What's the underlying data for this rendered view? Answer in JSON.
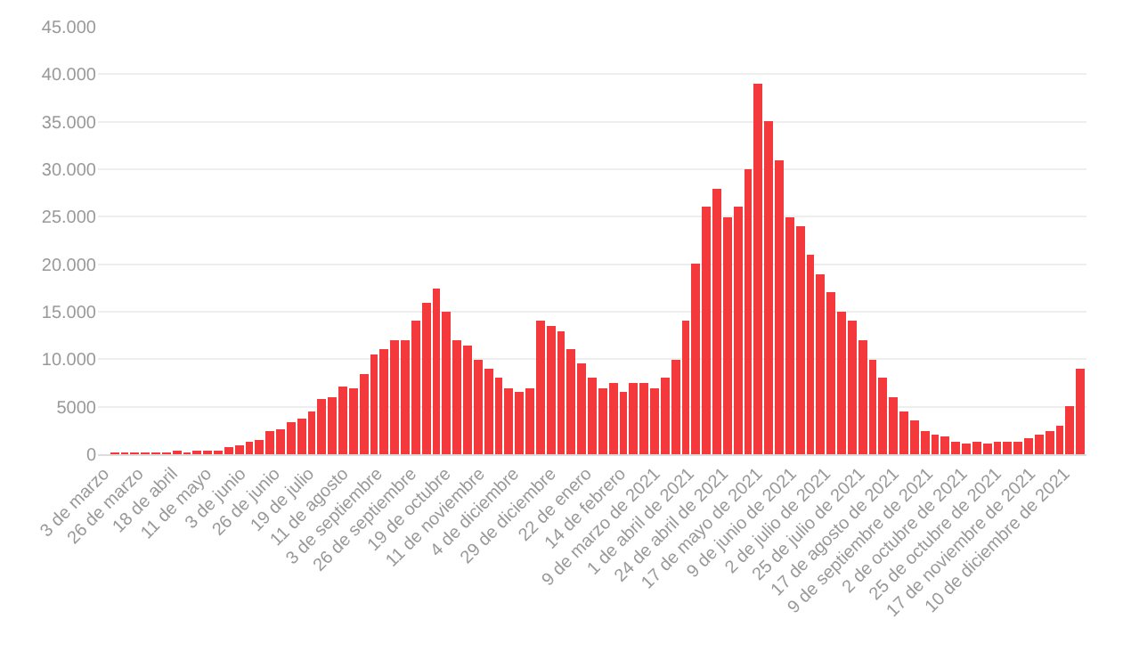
{
  "chart_data": {
    "type": "bar",
    "color": "#f4393c",
    "grid": "y",
    "legend": false,
    "x": [
      "2020-03-03",
      "2020-03-10",
      "2020-03-17",
      "2020-03-24",
      "2020-03-31",
      "2020-04-07",
      "2020-04-14",
      "2020-04-21",
      "2020-04-28",
      "2020-05-05",
      "2020-05-12",
      "2020-05-19",
      "2020-05-26",
      "2020-06-02",
      "2020-06-09",
      "2020-06-16",
      "2020-06-23",
      "2020-06-30",
      "2020-07-07",
      "2020-07-14",
      "2020-07-21",
      "2020-07-28",
      "2020-08-04",
      "2020-08-11",
      "2020-08-18",
      "2020-08-25",
      "2020-09-01",
      "2020-09-08",
      "2020-09-15",
      "2020-09-22",
      "2020-09-29",
      "2020-10-06",
      "2020-10-13",
      "2020-10-20",
      "2020-10-27",
      "2020-11-03",
      "2020-11-10",
      "2020-11-17",
      "2020-11-24",
      "2020-12-01",
      "2020-12-08",
      "2020-12-15",
      "2020-12-22",
      "2020-12-29",
      "2021-01-05",
      "2021-01-12",
      "2021-01-19",
      "2021-01-26",
      "2021-02-02",
      "2021-02-09",
      "2021-02-16",
      "2021-02-23",
      "2021-03-02",
      "2021-03-09",
      "2021-03-16",
      "2021-03-23",
      "2021-03-30",
      "2021-04-06",
      "2021-04-13",
      "2021-04-20",
      "2021-04-27",
      "2021-05-04",
      "2021-05-11",
      "2021-05-18",
      "2021-05-25",
      "2021-06-01",
      "2021-06-08",
      "2021-06-15",
      "2021-06-22",
      "2021-06-29",
      "2021-07-06",
      "2021-07-13",
      "2021-07-20",
      "2021-07-27",
      "2021-08-03",
      "2021-08-10",
      "2021-08-17",
      "2021-08-24",
      "2021-08-31",
      "2021-09-07",
      "2021-09-14",
      "2021-09-21",
      "2021-09-28",
      "2021-10-05",
      "2021-10-12",
      "2021-10-19",
      "2021-10-26",
      "2021-11-02",
      "2021-11-09",
      "2021-11-16",
      "2021-11-23",
      "2021-11-30",
      "2021-12-07",
      "2021-12-14",
      "2021-12-21"
    ],
    "values": [
      0,
      20,
      70,
      100,
      150,
      150,
      150,
      200,
      150,
      250,
      300,
      450,
      700,
      900,
      1300,
      1500,
      2400,
      2600,
      3400,
      3800,
      4500,
      5800,
      6000,
      7200,
      7000,
      8500,
      10500,
      11000,
      12000,
      12000,
      14000,
      16000,
      17500,
      15000,
      12000,
      11500,
      10000,
      9000,
      8000,
      7000,
      6500,
      7000,
      14000,
      13500,
      13000,
      11000,
      9500,
      8000,
      7000,
      7500,
      6500,
      7500,
      7500,
      7000,
      8000,
      10000,
      14000,
      20000,
      26000,
      28000,
      25000,
      26000,
      30000,
      39000,
      35000,
      31000,
      25000,
      24000,
      21000,
      19000,
      17000,
      15000,
      14000,
      12000,
      10000,
      8000,
      6000,
      4500,
      3500,
      2500,
      2000,
      1800,
      1400,
      1200,
      1300,
      1200,
      1300,
      1300,
      1400,
      1700,
      2000,
      2500,
      3000,
      5000,
      9000
    ],
    "xlim": [
      "2020-02-28",
      "2021-12-25"
    ],
    "xticks": [
      {
        "value": "2020-03-03",
        "label": "3 de marzo"
      },
      {
        "value": "2020-03-26",
        "label": "26 de marzo"
      },
      {
        "value": "2020-04-18",
        "label": "18 de abril"
      },
      {
        "value": "2020-05-11",
        "label": "11 de mayo"
      },
      {
        "value": "2020-06-03",
        "label": "3 de junio"
      },
      {
        "value": "2020-06-26",
        "label": "26 de junio"
      },
      {
        "value": "2020-07-19",
        "label": "19 de julio"
      },
      {
        "value": "2020-08-11",
        "label": "11 de agosto"
      },
      {
        "value": "2020-09-03",
        "label": "3 de septiembre"
      },
      {
        "value": "2020-09-26",
        "label": "26 de septiembre"
      },
      {
        "value": "2020-10-19",
        "label": "19 de octubre"
      },
      {
        "value": "2020-11-11",
        "label": "11 de noviembre"
      },
      {
        "value": "2020-12-04",
        "label": "4 de diciembre"
      },
      {
        "value": "2020-12-29",
        "label": "29 de diciembre"
      },
      {
        "value": "2021-01-22",
        "label": "22 de enero"
      },
      {
        "value": "2021-02-14",
        "label": "14 de febrero"
      },
      {
        "value": "2021-03-09",
        "label": "9 de marzo de 2021"
      },
      {
        "value": "2021-04-01",
        "label": "1 de abril de 2021"
      },
      {
        "value": "2021-04-24",
        "label": "24 de abril de 2021"
      },
      {
        "value": "2021-05-17",
        "label": "17 de mayo de 2021"
      },
      {
        "value": "2021-06-09",
        "label": "9 de junio de 2021"
      },
      {
        "value": "2021-07-02",
        "label": "2 de julio de 2021"
      },
      {
        "value": "2021-07-25",
        "label": "25 de julio de 2021"
      },
      {
        "value": "2021-08-17",
        "label": "17 de agosto de 2021"
      },
      {
        "value": "2021-09-09",
        "label": "9 de septiembre de 2021"
      },
      {
        "value": "2021-10-02",
        "label": "2 de octubre de 2021"
      },
      {
        "value": "2021-10-25",
        "label": "25 de octubre de 2021"
      },
      {
        "value": "2021-11-17",
        "label": "17 de noviembre de 2021"
      },
      {
        "value": "2021-12-10",
        "label": "10 de diciembre de 2021"
      }
    ],
    "ylim": [
      0,
      45000
    ],
    "yticks": [
      0,
      5000,
      {
        "value": 10000,
        "label": "10.000"
      },
      {
        "value": 15000,
        "label": "15.000"
      },
      {
        "value": 20000,
        "label": "20.000"
      },
      {
        "value": 25000,
        "label": "25.000"
      },
      {
        "value": 30000,
        "label": "30.000"
      },
      {
        "value": 35000,
        "label": "35.000"
      },
      {
        "value": 40000,
        "label": "40.000"
      },
      {
        "value": 45000,
        "label": "45.000"
      }
    ]
  }
}
